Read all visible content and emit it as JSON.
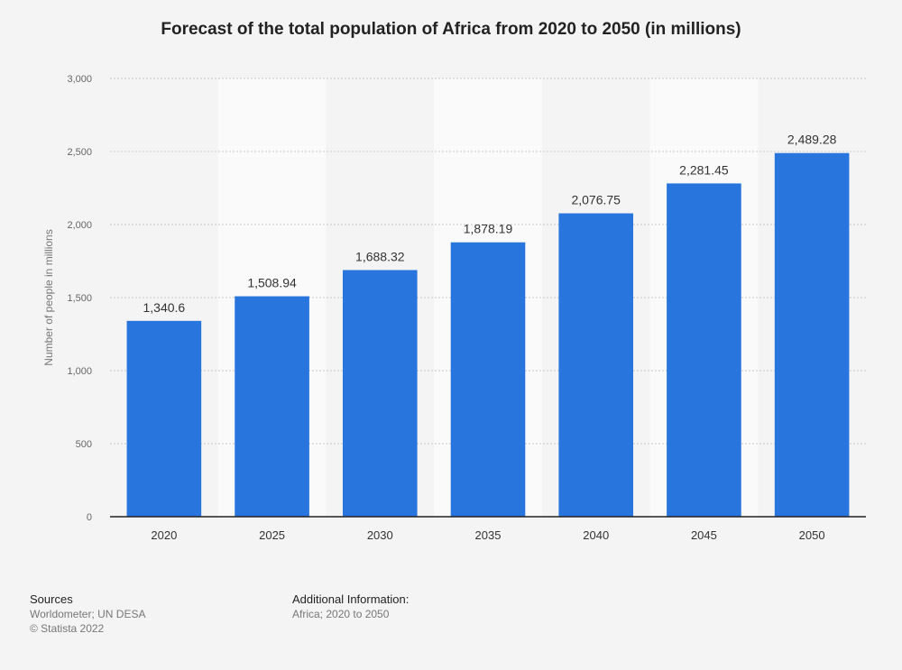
{
  "chart_data": {
    "type": "bar",
    "title": "Forecast of the total population of Africa from 2020 to 2050 (in millions)",
    "ylabel": "Number of people in millions",
    "xlabel": "",
    "categories": [
      "2020",
      "2025",
      "2030",
      "2035",
      "2040",
      "2045",
      "2050"
    ],
    "values": [
      1340.6,
      1508.94,
      1688.32,
      1878.19,
      2076.75,
      2281.45,
      2489.28
    ],
    "value_labels": [
      "1,340.6",
      "1,508.94",
      "1,688.32",
      "1,878.19",
      "2,076.75",
      "2,281.45",
      "2,489.28"
    ],
    "ylim": [
      0,
      3000
    ],
    "yticks": [
      0,
      500,
      1000,
      1500,
      2000,
      2500,
      3000
    ],
    "ytick_labels": [
      "0",
      "500",
      "1,000",
      "1,500",
      "2,000",
      "2,500",
      "3,000"
    ],
    "grid": true,
    "bar_color": "#2875de"
  },
  "footer": {
    "sources_heading": "Sources",
    "sources_line1": "Worldometer; UN DESA",
    "sources_line2": "© Statista 2022",
    "additional_heading": "Additional Information:",
    "additional_text": "Africa; 2020 to 2050"
  }
}
